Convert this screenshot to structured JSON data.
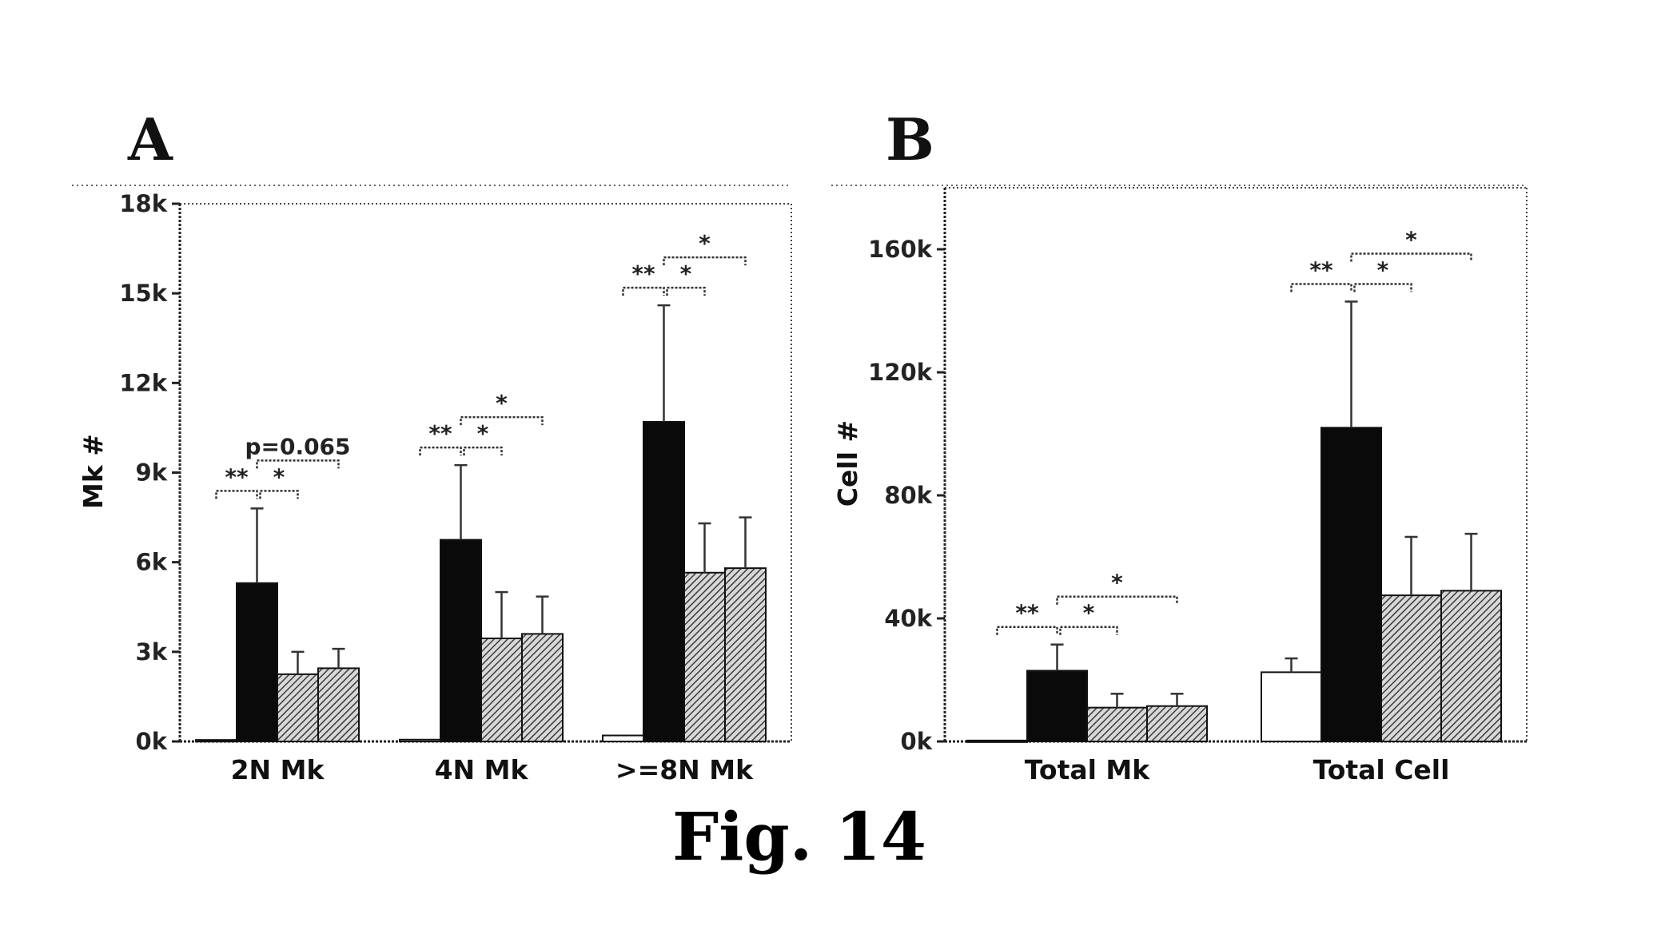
{
  "figure": {
    "caption": "Fig. 14",
    "panels": [
      "A",
      "B"
    ]
  },
  "colors": {
    "white_bar": "#ffffff",
    "black_bar": "#0a0a0a",
    "hatch_bar": "#6e6e6e",
    "axis": "#222222"
  },
  "chart_data": [
    {
      "panel": "A",
      "type": "bar",
      "ylabel": "Mk #",
      "xlabel": "",
      "ylim": [
        0,
        18000
      ],
      "yticks": [
        0,
        3000,
        6000,
        9000,
        12000,
        15000,
        18000
      ],
      "ytick_labels": [
        "0k",
        "3k",
        "6k",
        "9k",
        "12k",
        "15k",
        "18k"
      ],
      "categories": [
        "2N Mk",
        "4N Mk",
        ">=8N Mk"
      ],
      "series": [
        {
          "style": "white",
          "values": [
            50,
            60,
            200
          ],
          "errors": [
            0,
            0,
            0
          ]
        },
        {
          "style": "black",
          "values": [
            5300,
            6750,
            10700
          ],
          "errors": [
            2500,
            2500,
            3900
          ]
        },
        {
          "style": "hatch",
          "values": [
            2250,
            3450,
            5650
          ],
          "errors": [
            750,
            1550,
            1650
          ]
        },
        {
          "style": "hatch",
          "values": [
            2450,
            3600,
            5800
          ],
          "errors": [
            650,
            1250,
            1700
          ]
        }
      ],
      "annotations": [
        {
          "category": 0,
          "from": 0,
          "to": 1,
          "text": "**"
        },
        {
          "category": 0,
          "from": 1,
          "to": 2,
          "text": "*"
        },
        {
          "category": 0,
          "from": 1,
          "to": 3,
          "text": "p=0.065"
        },
        {
          "category": 1,
          "from": 0,
          "to": 1,
          "text": "**"
        },
        {
          "category": 1,
          "from": 1,
          "to": 2,
          "text": "*"
        },
        {
          "category": 1,
          "from": 1,
          "to": 3,
          "text": "*"
        },
        {
          "category": 2,
          "from": 0,
          "to": 1,
          "text": "**"
        },
        {
          "category": 2,
          "from": 1,
          "to": 2,
          "text": "*"
        },
        {
          "category": 2,
          "from": 1,
          "to": 3,
          "text": "*"
        }
      ]
    },
    {
      "panel": "B",
      "type": "bar",
      "ylabel": "Cell #",
      "xlabel": "",
      "ylim": [
        0,
        180000
      ],
      "yticks": [
        0,
        40000,
        80000,
        120000,
        160000
      ],
      "ytick_labels": [
        "0k",
        "40k",
        "80k",
        "120k",
        "160k"
      ],
      "categories": [
        "Total Mk",
        "Total Cell"
      ],
      "series": [
        {
          "style": "white",
          "values": [
            300,
            22500
          ],
          "errors": [
            0,
            4500
          ]
        },
        {
          "style": "black",
          "values": [
            23000,
            102000
          ],
          "errors": [
            8500,
            41000
          ]
        },
        {
          "style": "hatch",
          "values": [
            11000,
            47500
          ],
          "errors": [
            4500,
            19000
          ]
        },
        {
          "style": "hatch",
          "values": [
            11500,
            49000
          ],
          "errors": [
            4000,
            18500
          ]
        }
      ],
      "annotations": [
        {
          "category": 0,
          "from": 0,
          "to": 1,
          "text": "**"
        },
        {
          "category": 0,
          "from": 1,
          "to": 2,
          "text": "*"
        },
        {
          "category": 0,
          "from": 1,
          "to": 3,
          "text": "*"
        },
        {
          "category": 1,
          "from": 0,
          "to": 1,
          "text": "**"
        },
        {
          "category": 1,
          "from": 1,
          "to": 2,
          "text": "*"
        },
        {
          "category": 1,
          "from": 1,
          "to": 3,
          "text": "*"
        }
      ]
    }
  ]
}
